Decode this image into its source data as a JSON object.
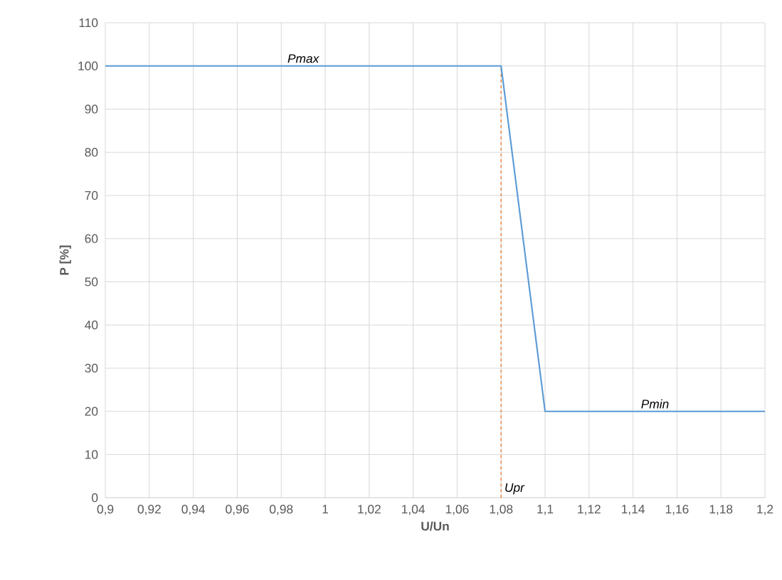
{
  "chart_data": {
    "type": "line",
    "xlabel": "U/Un",
    "ylabel": "P [%]",
    "series": [
      {
        "color": "#5b9bd5",
        "x": [
          0.9,
          1.08,
          1.1,
          1.2
        ],
        "values": [
          100,
          100,
          20,
          20
        ]
      }
    ],
    "xlim": [
      0.9,
      1.2
    ],
    "xticks": [
      {
        "value": 0.9,
        "label": "0,9"
      },
      {
        "value": 0.92,
        "label": "0,92"
      },
      {
        "value": 0.94,
        "label": "0,94"
      },
      {
        "value": 0.96,
        "label": "0,96"
      },
      {
        "value": 0.98,
        "label": "0,98"
      },
      {
        "value": 1,
        "label": "1"
      },
      {
        "value": 1.02,
        "label": "1,02"
      },
      {
        "value": 1.04,
        "label": "1,04"
      },
      {
        "value": 1.06,
        "label": "1,06"
      },
      {
        "value": 1.08,
        "label": "1,08"
      },
      {
        "value": 1.1,
        "label": "1,1"
      },
      {
        "value": 1.12,
        "label": "1,12"
      },
      {
        "value": 1.14,
        "label": "1,14"
      },
      {
        "value": 1.16,
        "label": "1,16"
      },
      {
        "value": 1.18,
        "label": "1,18"
      },
      {
        "value": 1.2,
        "label": "1,2"
      }
    ],
    "ylim": [
      0,
      110
    ],
    "yticks": [
      0,
      10,
      20,
      30,
      40,
      50,
      60,
      70,
      80,
      90,
      100,
      110
    ],
    "grid": true,
    "marker": "none",
    "line_style": "solid",
    "ref_lines": [
      {
        "axis": "x",
        "value": 1.08,
        "label": "Upr",
        "color": "#ed7d31",
        "line_style": "dashed"
      }
    ],
    "annotations": [
      {
        "text": "Pmax",
        "x": 0.99,
        "y": 100
      },
      {
        "text": "Pmin",
        "x": 1.15,
        "y": 20
      }
    ]
  }
}
